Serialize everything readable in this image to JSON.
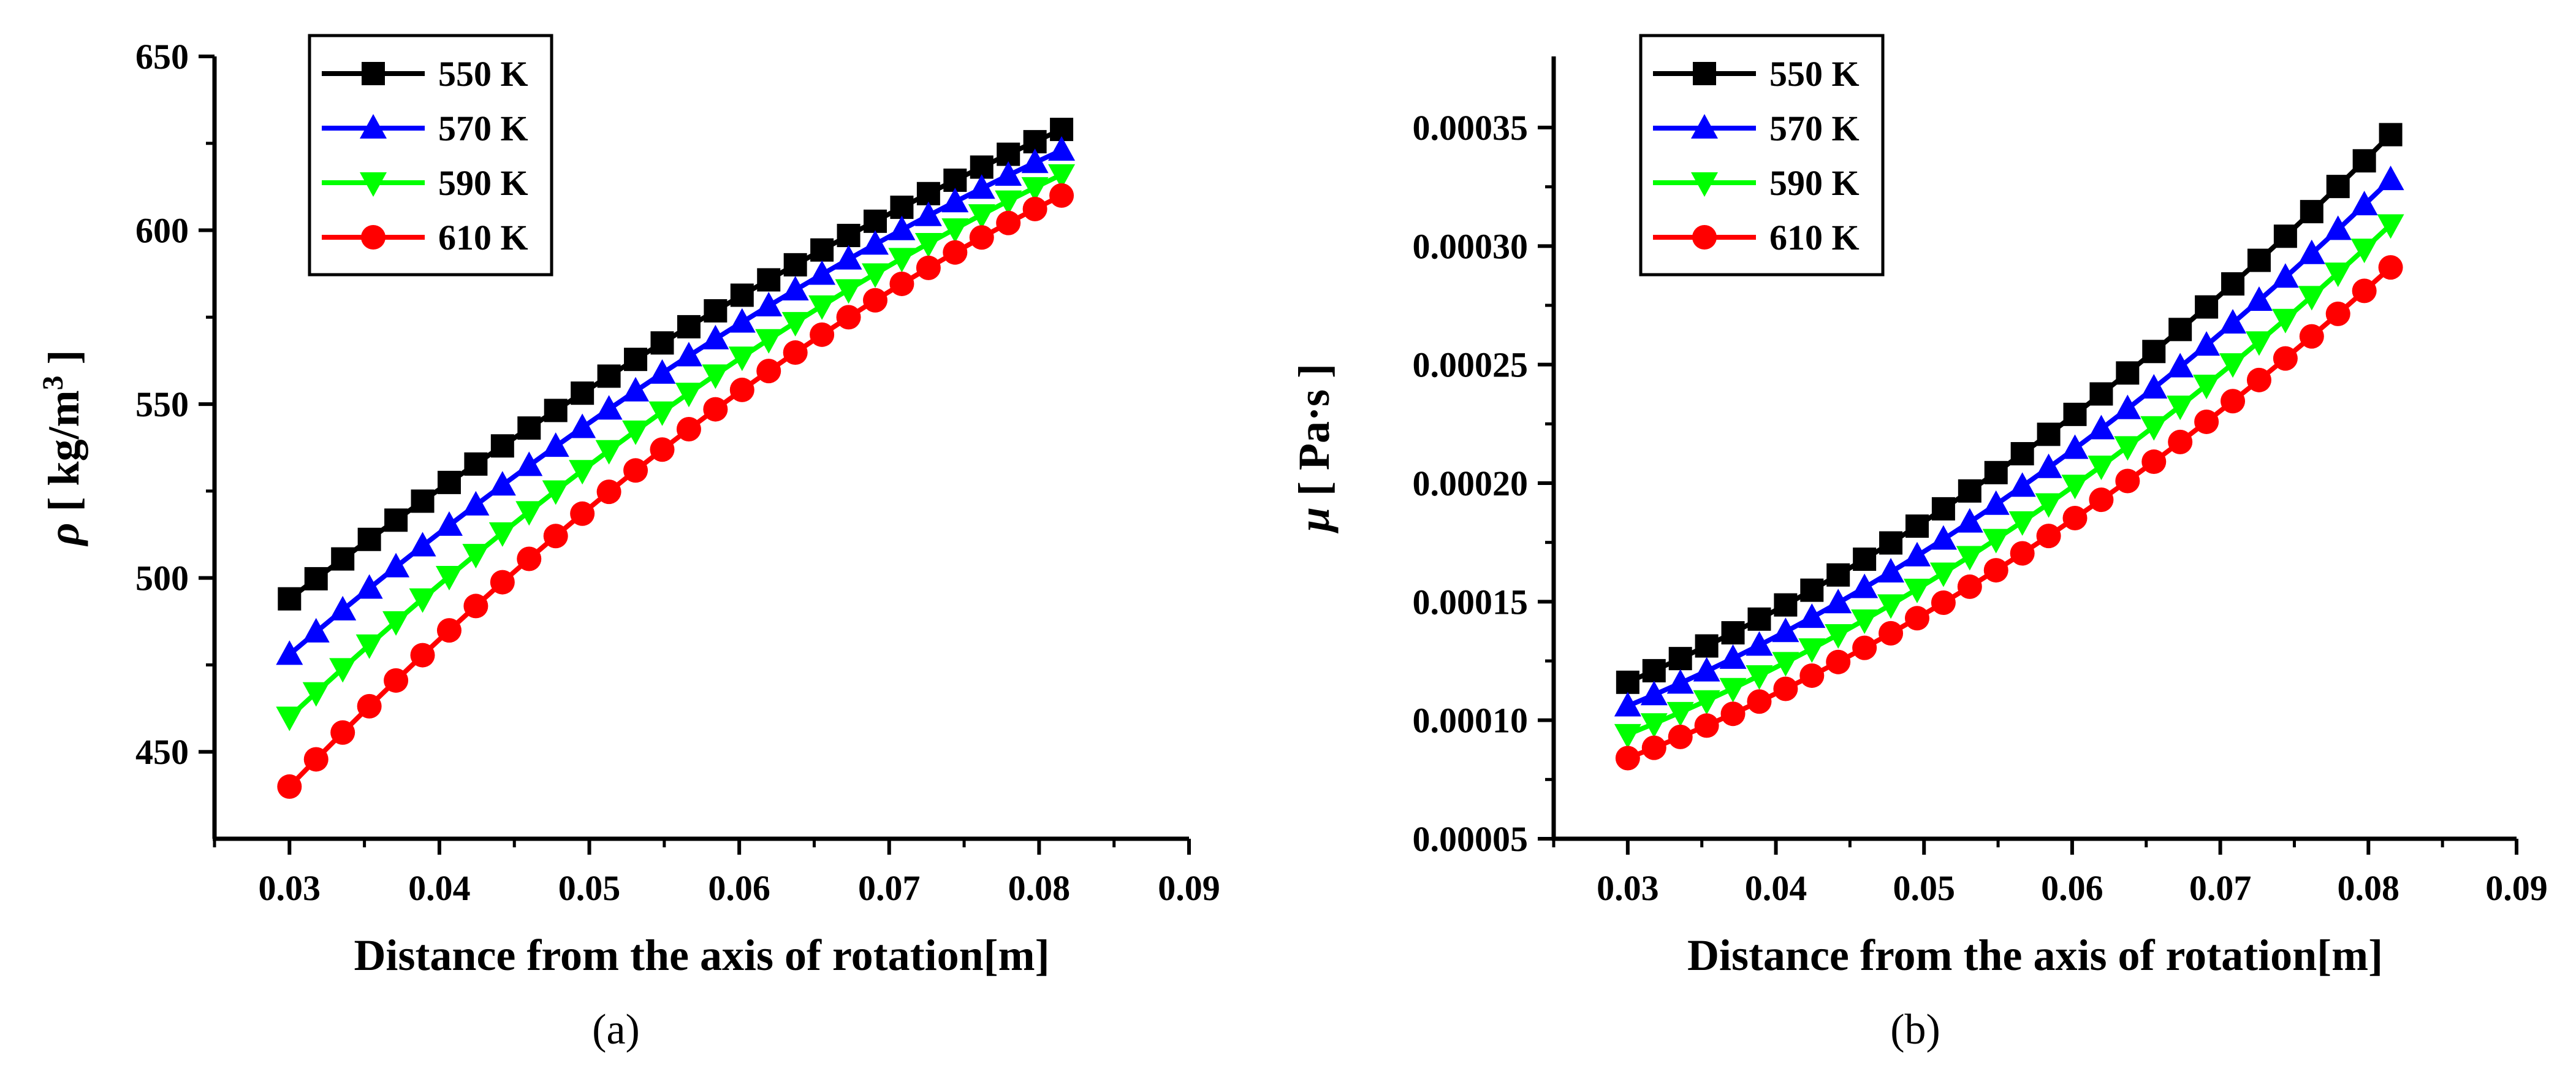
{
  "chart_data": [
    {
      "type": "line",
      "caption": "(a)",
      "xlabel": "Distance from the axis of rotation[m]",
      "ylabel_symbol": "ρ",
      "ylabel_unit": "[ kg/m",
      "ylabel_sup": "3",
      "ylabel_close": "]",
      "xlim": [
        0.025,
        0.09
      ],
      "ylim": [
        425,
        650
      ],
      "xticks": [
        0.03,
        0.04,
        0.05,
        0.06,
        0.07,
        0.08,
        0.09
      ],
      "xtick_labels": [
        "0.03",
        "0.04",
        "0.05",
        "0.06",
        "0.07",
        "0.08",
        "0.09"
      ],
      "yticks": [
        450,
        500,
        550,
        600,
        650
      ],
      "ytick_labels": [
        "450",
        "500",
        "550",
        "600",
        "650"
      ],
      "legend_position": "top-left",
      "x_start": 0.03,
      "x_end": 0.0815,
      "n_points": 30,
      "series": [
        {
          "name": "550 K",
          "color": "#000000",
          "marker": "square",
          "y_start": 494,
          "y_end": 629,
          "curve": 0.25
        },
        {
          "name": "570 K",
          "color": "#0000ff",
          "marker": "triangle-up",
          "y_start": 478,
          "y_end": 623,
          "curve": 0.3
        },
        {
          "name": "590 K",
          "color": "#00ff00",
          "marker": "triangle-down",
          "y_start": 460,
          "y_end": 616,
          "curve": 0.32
        },
        {
          "name": "610 K",
          "color": "#ff0000",
          "marker": "circle",
          "y_start": 440,
          "y_end": 610,
          "curve": 0.35
        }
      ]
    },
    {
      "type": "line",
      "caption": "(b)",
      "xlabel": "Distance from the axis of rotation[m]",
      "ylabel_symbol": "μ",
      "ylabel_unit": "[ Pa·s",
      "ylabel_sup": "",
      "ylabel_close": "]",
      "xlim": [
        0.025,
        0.09
      ],
      "ylim": [
        5e-05,
        0.00038
      ],
      "xticks": [
        0.03,
        0.04,
        0.05,
        0.06,
        0.07,
        0.08,
        0.09
      ],
      "xtick_labels": [
        "0.03",
        "0.04",
        "0.05",
        "0.06",
        "0.07",
        "0.08",
        "0.09"
      ],
      "yticks": [
        5e-05,
        0.0001,
        0.00015,
        0.0002,
        0.00025,
        0.0003,
        0.00035
      ],
      "ytick_labels": [
        "0.00005",
        "0.00010",
        "0.00015",
        "0.00020",
        "0.00025",
        "0.00030",
        "0.00035"
      ],
      "legend_position": "top-left",
      "x_start": 0.03,
      "x_end": 0.0815,
      "n_points": 30,
      "series": [
        {
          "name": "550 K",
          "color": "#000000",
          "marker": "square",
          "y_start": 0.000116,
          "y_end": 0.000347,
          "curve": -0.4
        },
        {
          "name": "570 K",
          "color": "#0000ff",
          "marker": "triangle-up",
          "y_start": 0.000106,
          "y_end": 0.000328,
          "curve": -0.4
        },
        {
          "name": "590 K",
          "color": "#00ff00",
          "marker": "triangle-down",
          "y_start": 9.4e-05,
          "y_end": 0.000309,
          "curve": -0.4
        },
        {
          "name": "610 K",
          "color": "#ff0000",
          "marker": "circle",
          "y_start": 8.4e-05,
          "y_end": 0.000291,
          "curve": -0.4
        }
      ]
    }
  ]
}
